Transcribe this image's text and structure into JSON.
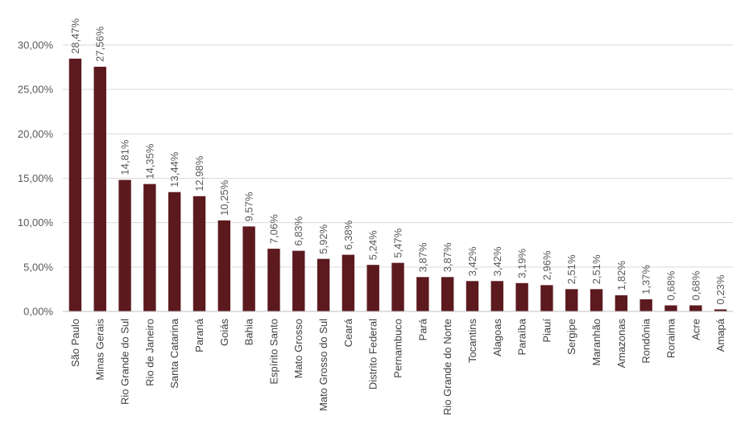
{
  "chart_data": {
    "type": "bar",
    "title": "",
    "xlabel": "",
    "ylabel": "",
    "ylim": [
      0,
      30
    ],
    "grid": true,
    "bar_color": "#5c1a1f",
    "grid_color": "#d9d9d9",
    "y_ticks": [
      {
        "value": 0,
        "label": "0,00%"
      },
      {
        "value": 5,
        "label": "5,00%"
      },
      {
        "value": 10,
        "label": "10,00%"
      },
      {
        "value": 15,
        "label": "15,00%"
      },
      {
        "value": 20,
        "label": "20,00%"
      },
      {
        "value": 25,
        "label": "25,00%"
      },
      {
        "value": 30,
        "label": "30,00%"
      }
    ],
    "categories": [
      "São Paulo",
      "Minas Gerais",
      "Rio Grande do Sul",
      "Rio de Janeiro",
      "Santa Catarina",
      "Paraná",
      "Goiás",
      "Bahia",
      "Espírito Santo",
      "Mato Grosso",
      "Mato Grosso do Sul",
      "Ceará",
      "Distrito Federal",
      "Pernambuco",
      "Pará",
      "Rio Grande do Norte",
      "Tocantins",
      "Alagoas",
      "Paraíba",
      "Piauí",
      "Sergipe",
      "Maranhão",
      "Amazonas",
      "Rondônia",
      "Roraima",
      "Acre",
      "Amapá"
    ],
    "values": [
      28.47,
      27.56,
      14.81,
      14.35,
      13.44,
      12.98,
      10.25,
      9.57,
      7.06,
      6.83,
      5.92,
      6.38,
      5.24,
      5.47,
      3.87,
      3.87,
      3.42,
      3.42,
      3.19,
      2.96,
      2.51,
      2.51,
      1.82,
      1.37,
      0.68,
      0.68,
      0.23
    ],
    "data_labels": [
      "28,47%",
      "27,56%",
      "14,81%",
      "14,35%",
      "13,44%",
      "12,98%",
      "10,25%",
      "9,57%",
      "7,06%",
      "6,83%",
      "5,92%",
      "6,38%",
      "5,24%",
      "5,47%",
      "3,87%",
      "3,87%",
      "3,42%",
      "3,42%",
      "3,19%",
      "2,96%",
      "2,51%",
      "2,51%",
      "1,82%",
      "1,37%",
      "0,68%",
      "0,68%",
      "0,23%"
    ]
  }
}
